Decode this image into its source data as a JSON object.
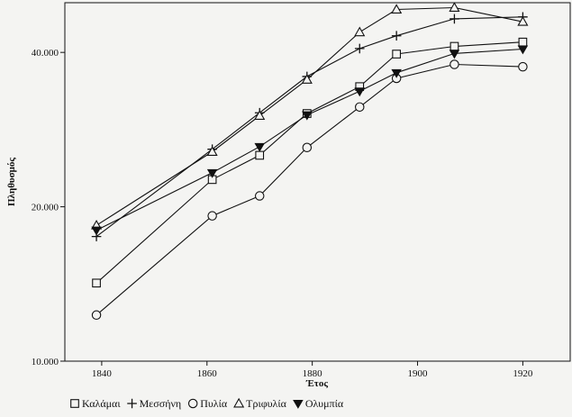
{
  "chart_data": {
    "type": "line",
    "xlabel": "Έτος",
    "ylabel": "Πληθυσμός",
    "xlim": [
      1833,
      1929
    ],
    "ylim": [
      10000,
      50000
    ],
    "y_scale": "log",
    "x_ticks": [
      1840,
      1860,
      1880,
      1900,
      1920
    ],
    "x_tick_labels": [
      "1840",
      "1860",
      "1880",
      "1900",
      "1920"
    ],
    "y_ticks": [
      10000,
      20000,
      40000
    ],
    "y_tick_labels": [
      "10.000",
      "20.000",
      "40.000"
    ],
    "legend_position": "bottom-left",
    "series": [
      {
        "name": "Καλάμαι",
        "marker": "square-open",
        "x": [
          1839,
          1861,
          1870,
          1879,
          1889,
          1896,
          1907,
          1920
        ],
        "y": [
          14200,
          22600,
          25200,
          30400,
          34300,
          39700,
          41100,
          41900
        ]
      },
      {
        "name": "Μεσσήνη",
        "marker": "plus",
        "x": [
          1839,
          1861,
          1870,
          1879,
          1889,
          1896,
          1907,
          1920
        ],
        "y": [
          17500,
          25900,
          30500,
          35900,
          40700,
          43100,
          46500,
          46900
        ]
      },
      {
        "name": "Πυλία",
        "marker": "circle-open",
        "x": [
          1839,
          1861,
          1870,
          1879,
          1889,
          1896,
          1907,
          1920
        ],
        "y": [
          12300,
          19200,
          21000,
          26100,
          31300,
          35600,
          37900,
          37500
        ]
      },
      {
        "name": "Τριφυλία",
        "marker": "triangle-open",
        "x": [
          1839,
          1861,
          1870,
          1879,
          1889,
          1896,
          1907,
          1920
        ],
        "y": [
          18400,
          25600,
          30100,
          35400,
          43800,
          48500,
          48900,
          45900
        ]
      },
      {
        "name": "Ολυμπία",
        "marker": "triangle-down-filled",
        "x": [
          1839,
          1861,
          1870,
          1879,
          1889,
          1896,
          1907,
          1920
        ],
        "y": [
          18000,
          23300,
          26200,
          30200,
          33600,
          36500,
          39800,
          40600
        ]
      }
    ]
  }
}
